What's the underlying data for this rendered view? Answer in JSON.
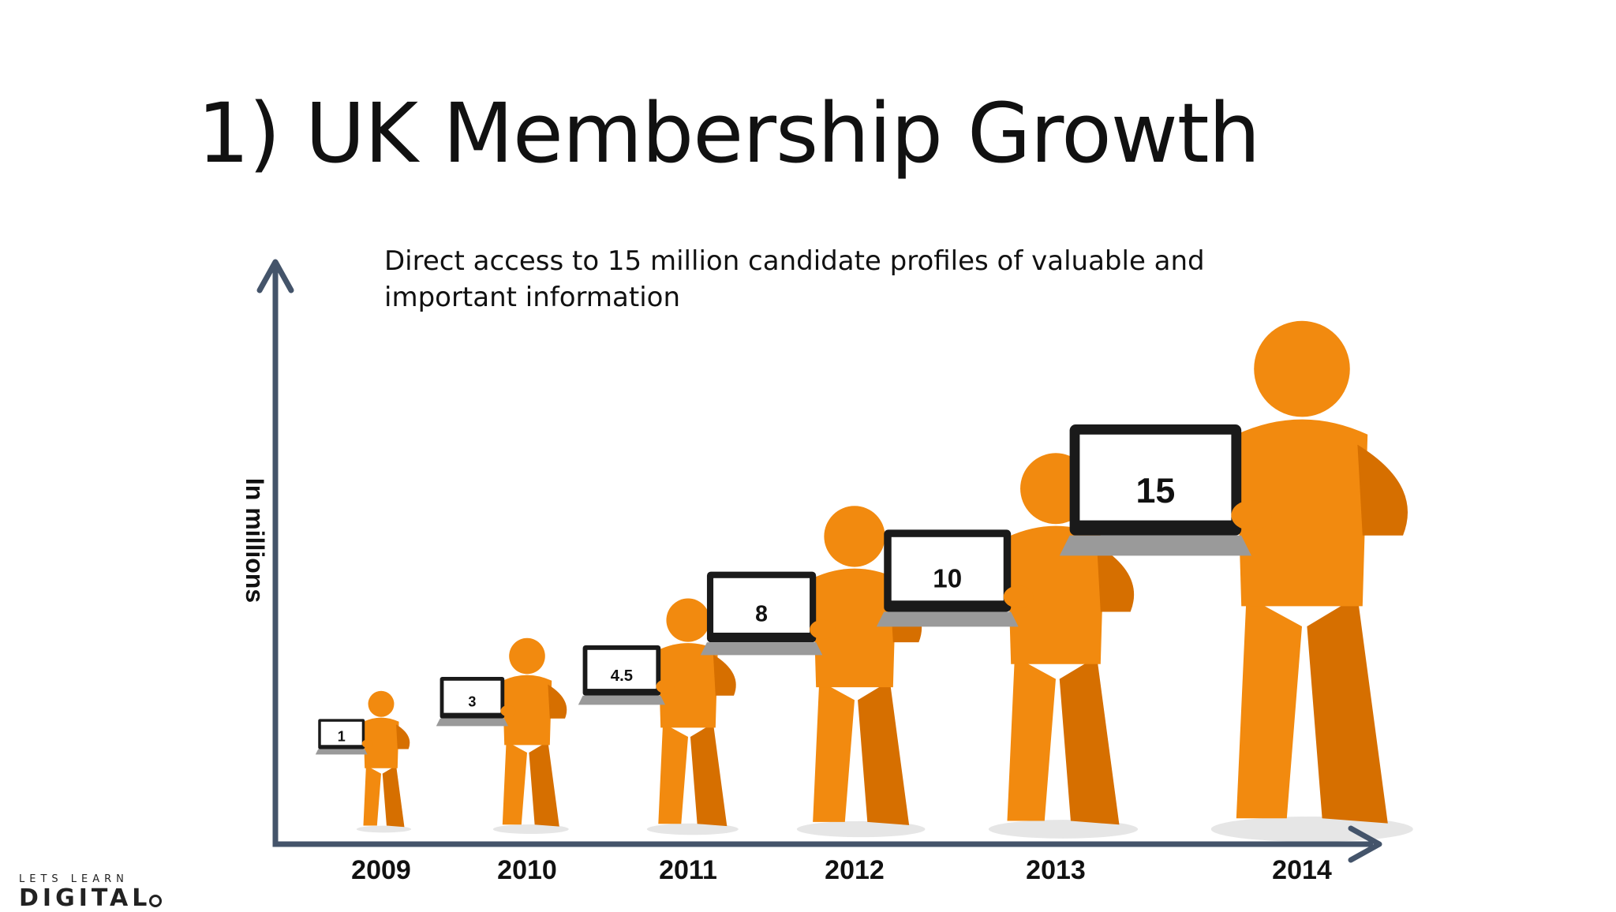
{
  "title": "1) UK Membership Growth",
  "subtitle": "Direct access to 15 million candidate profiles of valuable and important information",
  "logo": {
    "top": "LETS LEARN",
    "bottom": "DIGITAL"
  },
  "colors": {
    "axis": "#44546a",
    "figure": "#f28a0f",
    "figure_shadow": "#d66f00",
    "laptop_body": "#9a9a9a",
    "laptop_bezel": "#1a1a1a"
  },
  "chart_data": {
    "type": "bar",
    "ylabel": "In millions",
    "categories": [
      "2009",
      "2010",
      "2011",
      "2012",
      "2013",
      "2014"
    ],
    "values": [
      1,
      3,
      4.5,
      8,
      10,
      15
    ],
    "data_labels": [
      "1",
      "3",
      "4.5",
      "8",
      "10",
      "15"
    ]
  }
}
